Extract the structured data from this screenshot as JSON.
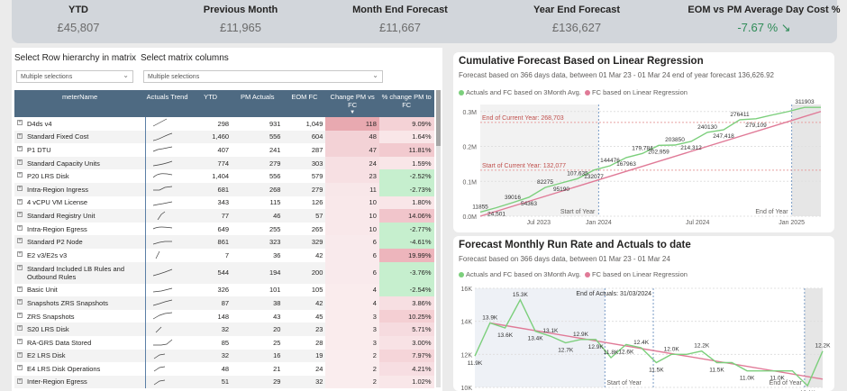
{
  "kpis": [
    {
      "title": "YTD",
      "value": "£45,807"
    },
    {
      "title": "Previous Month",
      "value": "£11,965"
    },
    {
      "title": "Month End Forecast",
      "value": "£11,667"
    },
    {
      "title": "Year End Forecast",
      "value": "£136,627"
    },
    {
      "title": "EOM vs PM Average Day Cost %",
      "value": "-7.67 % ↘"
    }
  ],
  "slicers": {
    "rows_label": "Select Row hierarchy in matrix",
    "rows_value": "Multiple selections",
    "cols_label": "Select matrix columns",
    "cols_value": "Multiple selections"
  },
  "matrix": {
    "headers": [
      "meterName",
      "Actuals Trend",
      "YTD",
      "PM Actuals",
      "EOM FC",
      "Change PM vs FC",
      "% change PM to FC"
    ],
    "sort_marker": "▼",
    "rows": [
      {
        "name": "D4ds v4",
        "ytd": "298",
        "pm": "931",
        "eom": "1,049",
        "chg": "118",
        "pct": "9.09%"
      },
      {
        "name": "Standard Fixed Cost",
        "ytd": "1,460",
        "pm": "556",
        "eom": "604",
        "chg": "48",
        "pct": "1.64%"
      },
      {
        "name": "P1 DTU",
        "ytd": "407",
        "pm": "241",
        "eom": "287",
        "chg": "47",
        "pct": "11.81%"
      },
      {
        "name": "Standard Capacity Units",
        "ytd": "774",
        "pm": "279",
        "eom": "303",
        "chg": "24",
        "pct": "1.59%"
      },
      {
        "name": "P20 LRS Disk",
        "ytd": "1,404",
        "pm": "556",
        "eom": "579",
        "chg": "23",
        "pct": "-2.52%"
      },
      {
        "name": "Intra-Region Ingress",
        "ytd": "681",
        "pm": "268",
        "eom": "279",
        "chg": "11",
        "pct": "-2.73%"
      },
      {
        "name": "4 vCPU VM License",
        "ytd": "343",
        "pm": "115",
        "eom": "126",
        "chg": "10",
        "pct": "1.80%"
      },
      {
        "name": "Standard Registry Unit",
        "ytd": "77",
        "pm": "46",
        "eom": "57",
        "chg": "10",
        "pct": "14.06%"
      },
      {
        "name": "Intra-Region Egress",
        "ytd": "649",
        "pm": "255",
        "eom": "265",
        "chg": "10",
        "pct": "-2.77%"
      },
      {
        "name": "Standard P2 Node",
        "ytd": "861",
        "pm": "323",
        "eom": "329",
        "chg": "6",
        "pct": "-4.61%"
      },
      {
        "name": "E2 v3/E2s v3",
        "ytd": "7",
        "pm": "36",
        "eom": "42",
        "chg": "6",
        "pct": "19.99%"
      },
      {
        "name": "Standard Included LB Rules and Outbound Rules",
        "ytd": "544",
        "pm": "194",
        "eom": "200",
        "chg": "6",
        "pct": "-3.76%"
      },
      {
        "name": "Basic Unit",
        "ytd": "326",
        "pm": "101",
        "eom": "105",
        "chg": "4",
        "pct": "-2.54%"
      },
      {
        "name": "Snapshots ZRS Snapshots",
        "ytd": "87",
        "pm": "38",
        "eom": "42",
        "chg": "4",
        "pct": "3.86%"
      },
      {
        "name": "ZRS Snapshots",
        "ytd": "148",
        "pm": "43",
        "eom": "45",
        "chg": "3",
        "pct": "10.25%"
      },
      {
        "name": "S20 LRS Disk",
        "ytd": "32",
        "pm": "20",
        "eom": "23",
        "chg": "3",
        "pct": "5.71%"
      },
      {
        "name": "RA-GRS Data Stored",
        "ytd": "85",
        "pm": "25",
        "eom": "28",
        "chg": "3",
        "pct": "3.00%"
      },
      {
        "name": "E2 LRS Disk",
        "ytd": "32",
        "pm": "16",
        "eom": "19",
        "chg": "2",
        "pct": "7.97%"
      },
      {
        "name": "E4 LRS Disk Operations",
        "ytd": "48",
        "pm": "21",
        "eom": "24",
        "chg": "2",
        "pct": "4.21%"
      },
      {
        "name": "Inter-Region Egress",
        "ytd": "51",
        "pm": "29",
        "eom": "32",
        "chg": "2",
        "pct": "1.02%"
      }
    ]
  },
  "colors": {
    "actuals": "#7ccf7c",
    "forecast": "#e07a97",
    "header": "#4e6a82",
    "neg": "#c6efce",
    "pos": "#f4c6cb"
  },
  "chart1": {
    "title": "Cumulative Forecast Based on Linear Regression",
    "subtitle": "Forecast based on 366 days data, between 01 Mar 23 - 01 Mar 24 end of year forecast 136,626.92",
    "legend_a": "Actuals and FC based on 3Month Avg.",
    "legend_b": "FC based on Linear Regression",
    "end_current_label": "End of Current Year: 268,703",
    "start_current_label": "Start of Current Year: 132,077",
    "start_year": "Start of Year",
    "end_year": "End of Year"
  },
  "chart2": {
    "title": "Forecast Monthly Run Rate and Actuals to date",
    "subtitle": "Forecast based on 366 days data, between 01 Mar 23 - 01 Mar 24",
    "legend_a": "Actuals and FC based on 3Month Avg.",
    "legend_b": "FC based on Linear Regression",
    "end_actuals_label": "End of Actuals: 31/03/2024",
    "start_year": "Start of Year",
    "end_year": "End of Year"
  },
  "chart_data": [
    {
      "type": "line",
      "title": "Cumulative Forecast Based on Linear Regression",
      "x_ticks": [
        "Jul 2023",
        "Jan 2024",
        "Jul 2024",
        "Jan 2025"
      ],
      "y_ticks": [
        "0.0M",
        "0.1M",
        "0.2M",
        "0.3M"
      ],
      "ylim": [
        0,
        320000
      ],
      "series": [
        {
          "name": "Actuals and FC based on 3Month Avg.",
          "x": [
            0,
            1,
            2,
            3,
            4,
            5,
            6,
            7,
            8,
            9,
            10,
            11,
            12,
            13,
            14,
            15,
            16,
            17,
            18,
            19,
            20,
            21
          ],
          "values": [
            11855,
            24501,
            39016,
            54363,
            82275,
            95190,
            107635,
            132077,
            144476,
            167963,
            179784,
            202959,
            203850,
            214312,
            240130,
            247418,
            276411,
            279109,
            290000,
            300000,
            311903,
            311903
          ],
          "labels": [
            "11855",
            "24,501",
            "39016",
            "54363",
            "82275",
            "95190",
            "107,635",
            "132077",
            "144476",
            "167963",
            "179,784",
            "202,959",
            "203850",
            "214,312",
            "240130",
            "247,418",
            "276411",
            "279,109",
            "",
            "",
            "311903",
            ""
          ]
        },
        {
          "name": "FC based on Linear Regression",
          "x": [
            0,
            21
          ],
          "values": [
            0,
            300000
          ]
        }
      ]
    },
    {
      "type": "line",
      "title": "Forecast Monthly Run Rate and Actuals to date",
      "y_ticks": [
        "10K",
        "12K",
        "14K",
        "16K"
      ],
      "ylim": [
        10000,
        16000
      ],
      "series": [
        {
          "name": "Actuals and FC based on 3Month Avg.",
          "values": [
            11900,
            13900,
            13600,
            15300,
            13400,
            13100,
            12700,
            12900,
            12900,
            11800,
            12600,
            12400,
            11500,
            12000,
            12000,
            12200,
            11500,
            11500,
            11000,
            11000,
            11000,
            11000,
            10100,
            12200
          ],
          "labels": [
            "11.9K",
            "13.9K",
            "13.6K",
            "15.3K",
            "13.4K",
            "13.1K",
            "12.7K",
            "12.9K",
            "12.9K",
            "11.8K",
            "12.6K",
            "12.4K",
            "11.5K",
            "12.0K",
            "",
            "12.2K",
            "11.5K",
            "",
            "11.0K",
            "",
            "11.0K",
            "",
            "10.1K",
            "12.2K"
          ]
        },
        {
          "name": "FC based on Linear Regression",
          "values": [
            13900,
            10500
          ]
        }
      ]
    }
  ]
}
